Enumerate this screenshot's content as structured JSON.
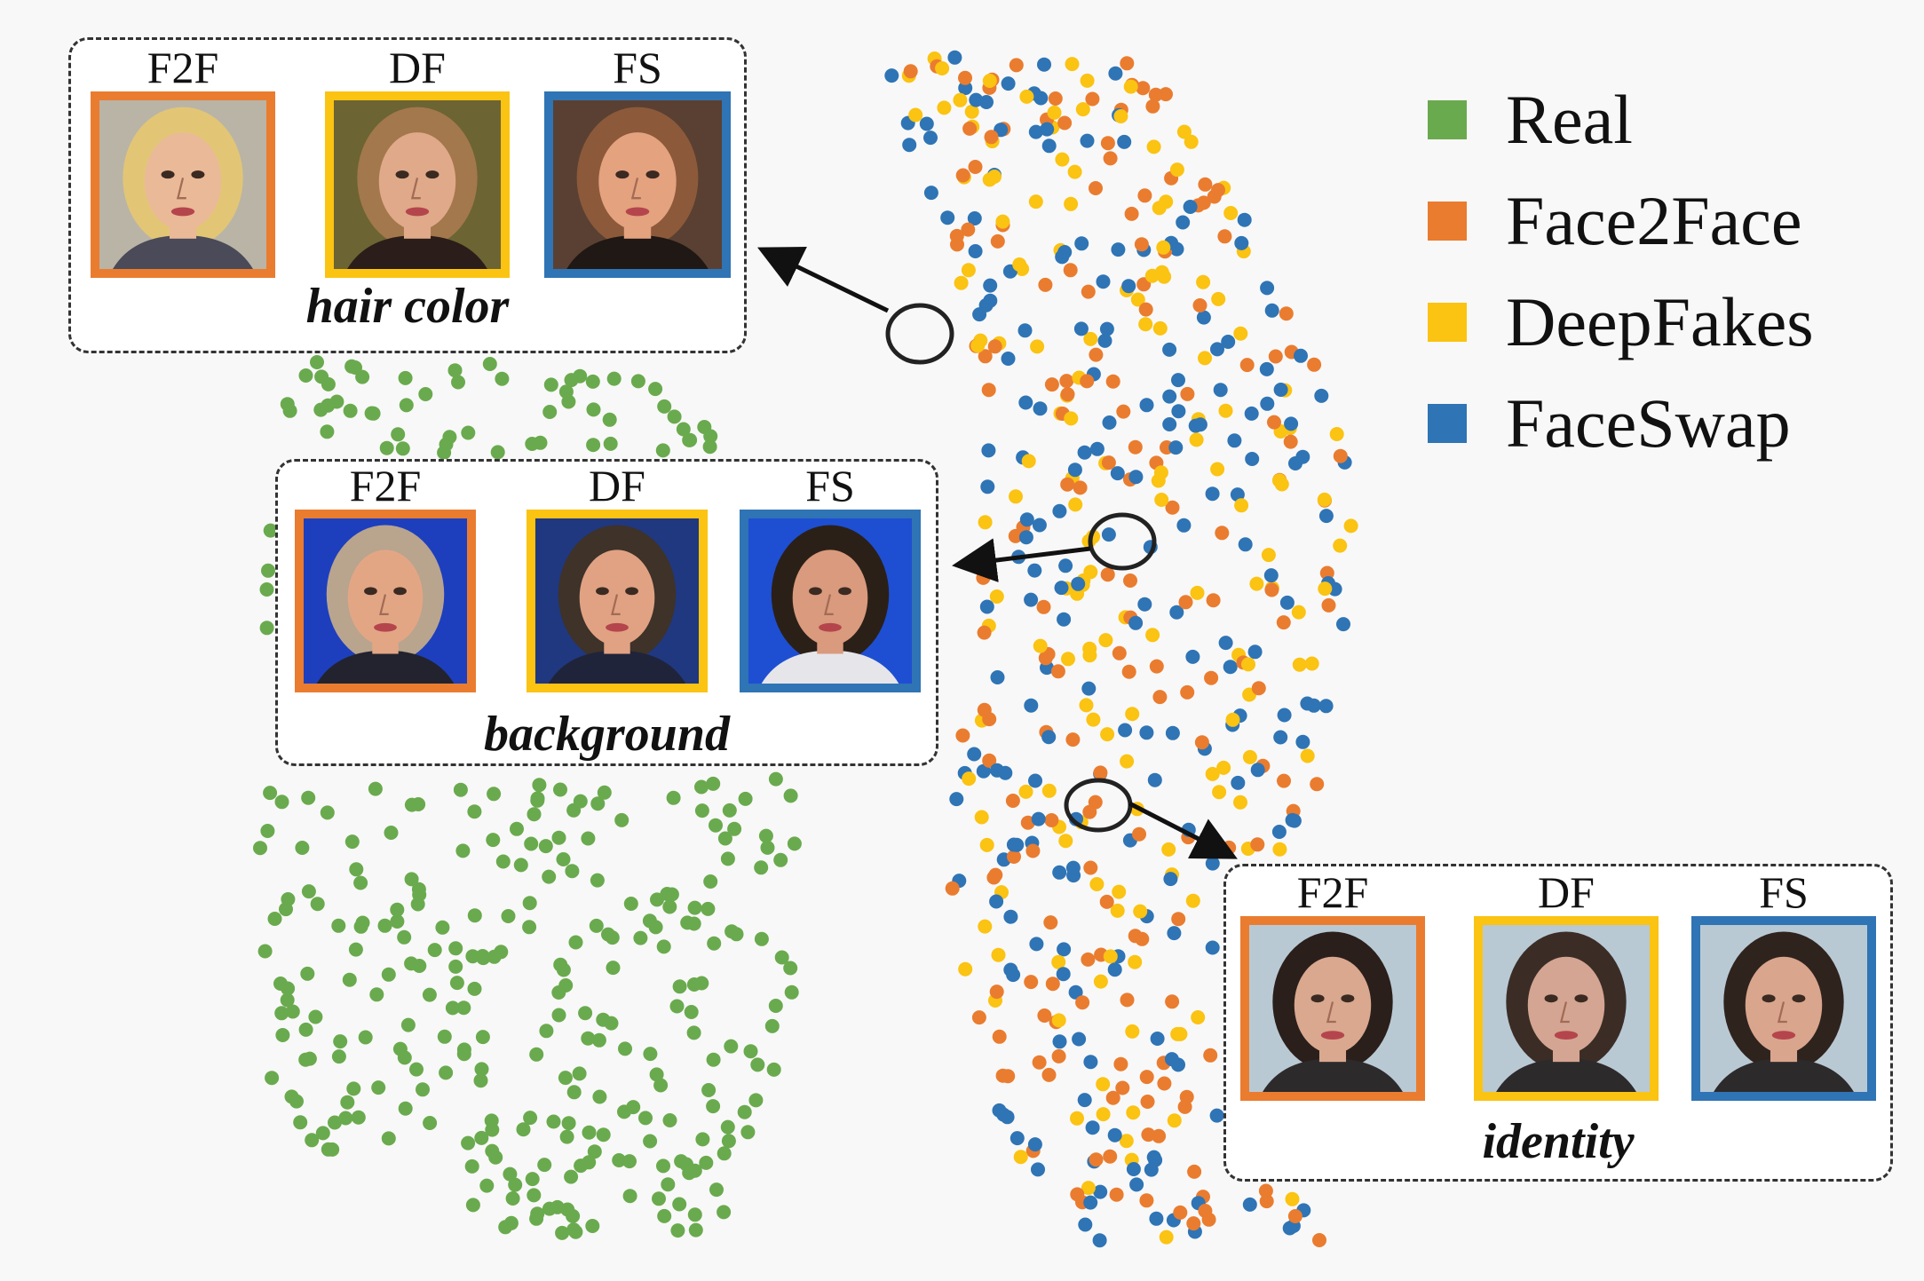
{
  "chart_data": {
    "type": "scatter",
    "title": "",
    "xlabel": "",
    "ylabel": "",
    "grid": false,
    "legend": {
      "placement": "top-right",
      "entries": [
        "Real",
        "Face2Face",
        "DeepFakes",
        "FaceSwap"
      ]
    },
    "series": [
      {
        "name": "Real",
        "color": "#6aaa4e"
      },
      {
        "name": "Face2Face",
        "color": "#ea7c2f"
      },
      {
        "name": "DeepFakes",
        "color": "#fbc312"
      },
      {
        "name": "FaceSwap",
        "color": "#2f74b5"
      }
    ]
  },
  "callouts": [
    {
      "id": "hair",
      "label": "hair color",
      "thumbs": [
        {
          "caption": "F2F",
          "color": "#ea7c2f",
          "bg": "#b9b4a6",
          "skin": "#eab998",
          "hair": "#e2c676",
          "shirt": "#4a4a58"
        },
        {
          "caption": "DF",
          "color": "#fbc312",
          "bg": "#6c6433",
          "skin": "#e0a98a",
          "hair": "#a3784c",
          "shirt": "#2b1d19"
        },
        {
          "caption": "FS",
          "color": "#2f74b5",
          "bg": "#5a4032",
          "skin": "#e4a27f",
          "hair": "#8c5a3a",
          "shirt": "#1f1814"
        }
      ]
    },
    {
      "id": "background",
      "label": "background",
      "thumbs": [
        {
          "caption": "F2F",
          "color": "#ea7c2f",
          "bg": "#1d3fbe",
          "skin": "#e3a685",
          "hair": "#b9a48e",
          "shirt": "#22232e"
        },
        {
          "caption": "DF",
          "color": "#fbc312",
          "bg": "#203880",
          "skin": "#e0a283",
          "hair": "#3e3229",
          "shirt": "#20243a"
        },
        {
          "caption": "FS",
          "color": "#2f74b5",
          "bg": "#1e4fd2",
          "skin": "#d99a7d",
          "hair": "#2b2018",
          "shirt": "#e6e6ea"
        }
      ]
    },
    {
      "id": "identity",
      "label": "identity",
      "thumbs": [
        {
          "caption": "F2F",
          "color": "#ea7c2f",
          "bg": "#b9c9d4",
          "skin": "#d9a88f",
          "hair": "#2a1f1b",
          "shirt": "#2d2a2b"
        },
        {
          "caption": "DF",
          "color": "#fbc312",
          "bg": "#b9c9d4",
          "skin": "#d4a592",
          "hair": "#3b2d26",
          "shirt": "#2d2a2b"
        },
        {
          "caption": "FS",
          "color": "#2f74b5",
          "bg": "#b9c9d4",
          "skin": "#d9a58d",
          "hair": "#2f231e",
          "shirt": "#2d2a2b"
        }
      ]
    }
  ]
}
